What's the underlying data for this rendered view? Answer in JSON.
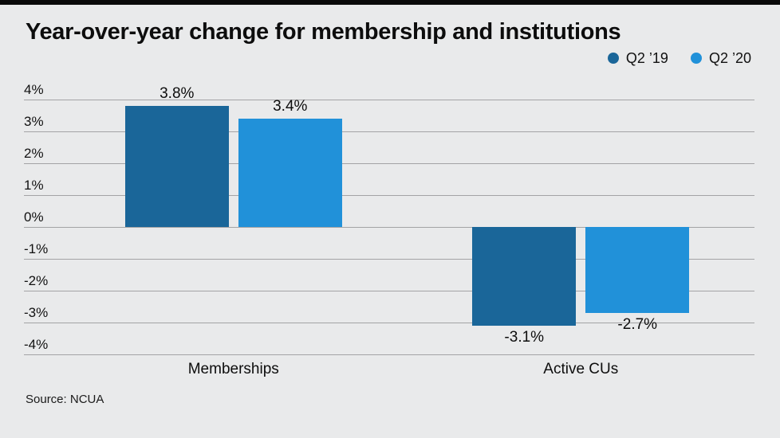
{
  "title": "Year-over-year change for membership and institutions",
  "source": "Source: NCUA",
  "chart_data": {
    "type": "bar",
    "categories": [
      "Memberships",
      "Active CUs"
    ],
    "series": [
      {
        "name": "Q2 ’19",
        "color": "#1a6699",
        "values": [
          3.8,
          -3.1
        ]
      },
      {
        "name": "Q2 ’20",
        "color": "#2191d9",
        "values": [
          3.4,
          -2.7
        ]
      }
    ],
    "value_labels": [
      [
        "3.8%",
        "-3.1%"
      ],
      [
        "3.4%",
        "-2.7%"
      ]
    ],
    "title": "Year-over-year change for membership and institutions",
    "xlabel": "",
    "ylabel": "",
    "ylim": [
      -4,
      4
    ],
    "ytick_step": 1,
    "ytick_labels": [
      "4%",
      "3%",
      "2%",
      "1%",
      "0%",
      "-1%",
      "-2%",
      "-3%",
      "-4%"
    ],
    "grid": true,
    "legend_position": "top-right"
  }
}
